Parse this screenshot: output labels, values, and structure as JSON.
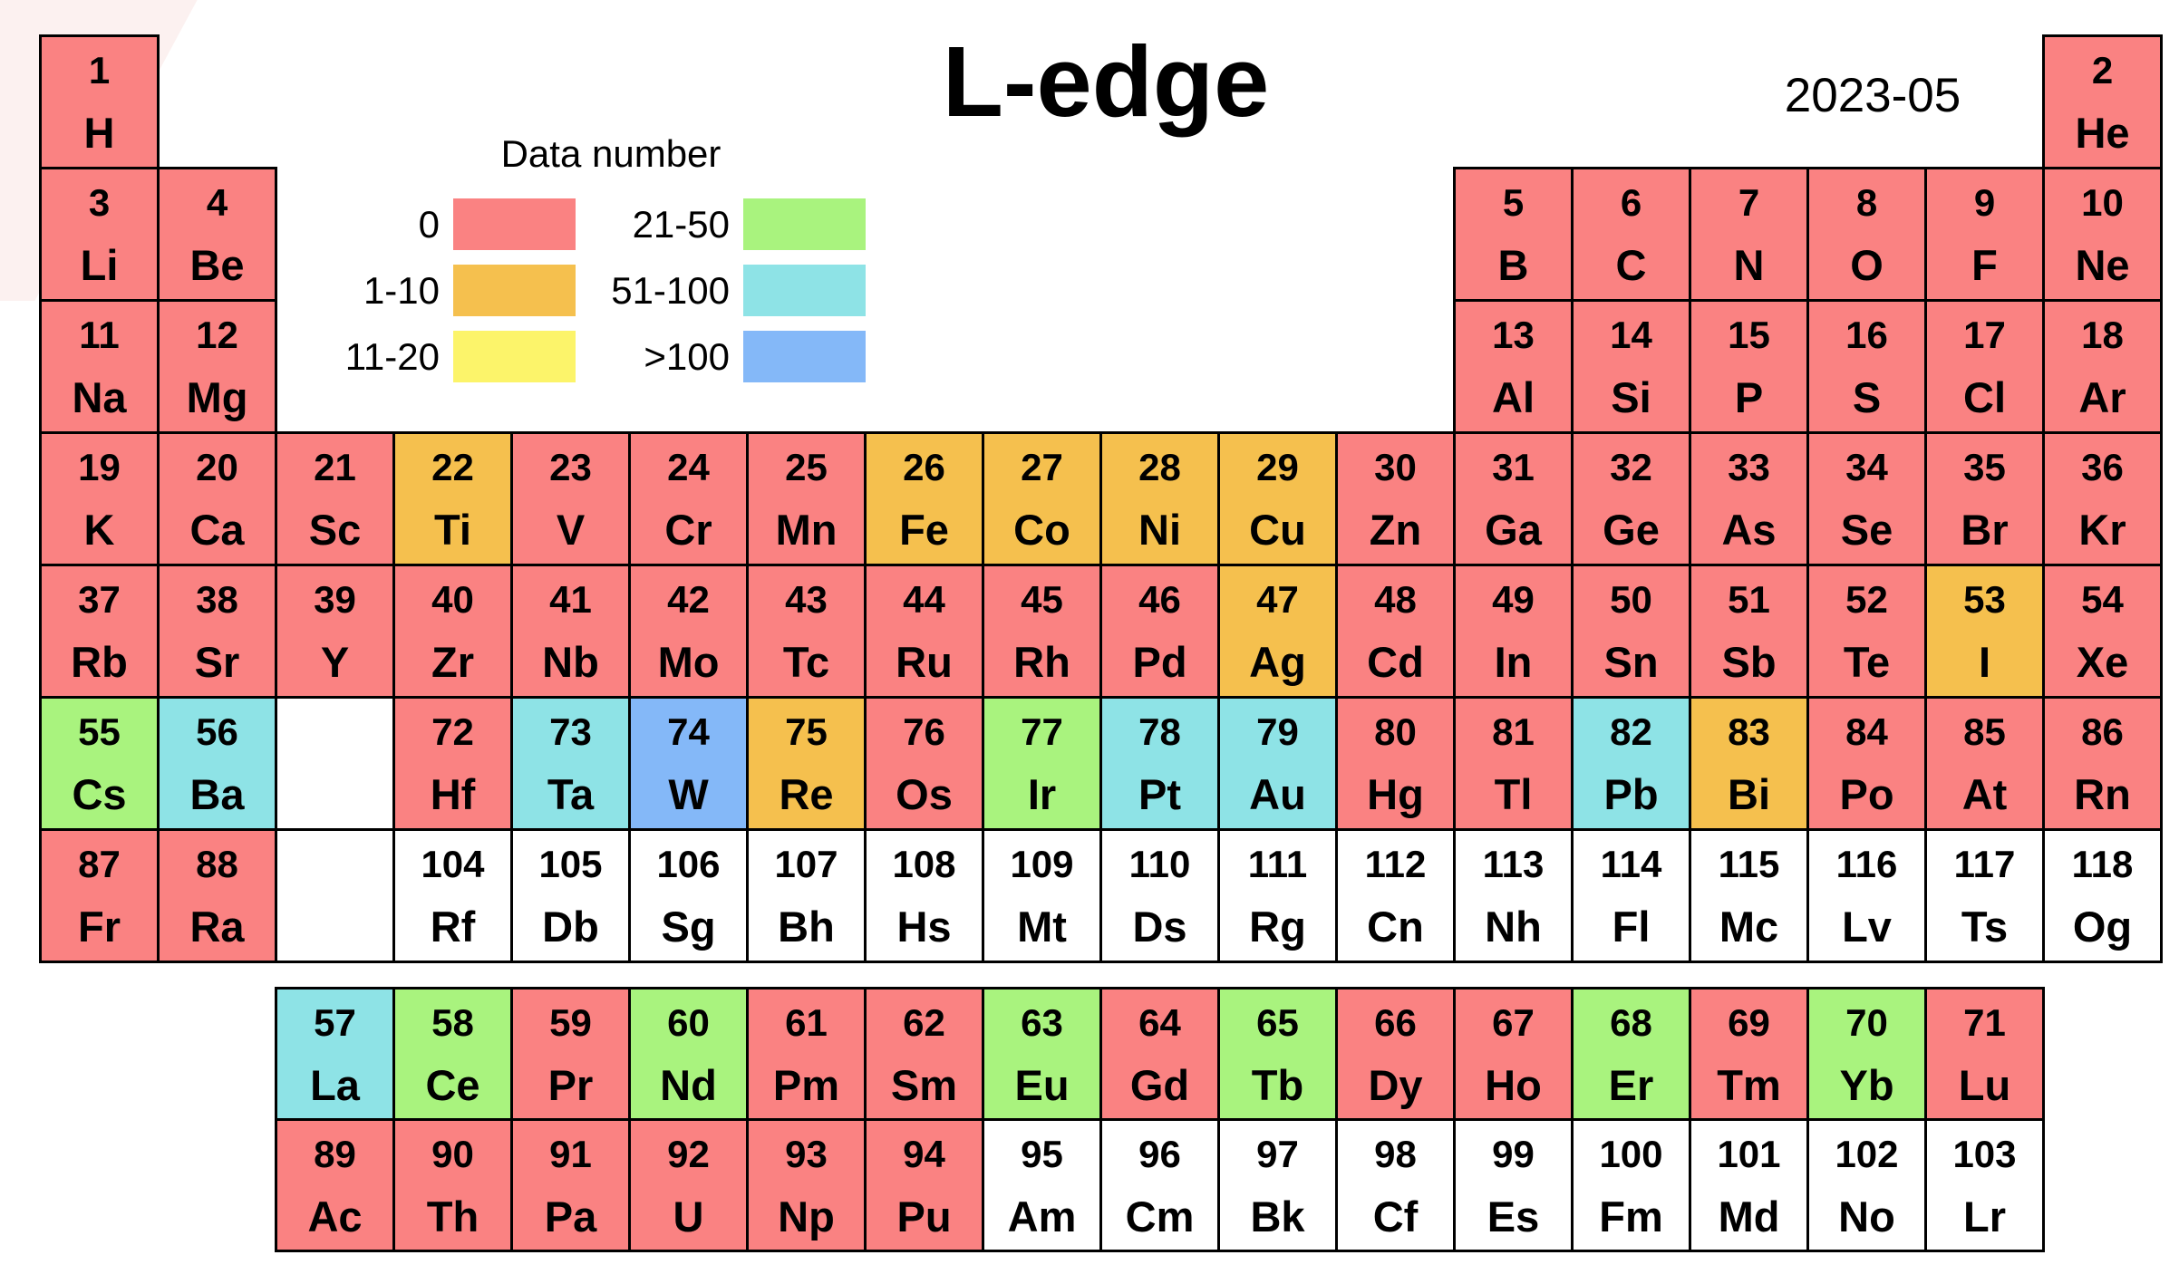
{
  "title": "L-edge",
  "date": "2023-05",
  "legend": {
    "title": "Data number",
    "items": [
      {
        "label": "0",
        "bin": "0",
        "row": 0,
        "col": 0
      },
      {
        "label": "1-10",
        "bin": "1-10",
        "row": 1,
        "col": 0
      },
      {
        "label": "11-20",
        "bin": "11-20",
        "row": 2,
        "col": 0
      },
      {
        "label": "21-50",
        "bin": "21-50",
        "row": 0,
        "col": 1
      },
      {
        "label": "51-100",
        "bin": "51-100",
        "row": 1,
        "col": 1
      },
      {
        "label": ">100",
        "bin": ">100",
        "row": 2,
        "col": 1
      }
    ]
  },
  "colors": {
    "0": "#fa8282",
    "1-10": "#f5c04e",
    "11-20": "#fcf46a",
    "21-50": "#a9f37e",
    "51-100": "#8ee3e6",
    ">100": "#84b8f8",
    "none": "#ffffff"
  },
  "placeholders": [
    {
      "row": 6,
      "col": 3
    },
    {
      "row": 7,
      "col": 3
    }
  ],
  "chart_data": {
    "type": "heatmap",
    "title": "L-edge",
    "subtitle": "2023-05",
    "legend_title": "Data number",
    "bins": [
      "0",
      "1-10",
      "11-20",
      "21-50",
      "51-100",
      ">100"
    ],
    "elements": [
      {
        "z": 1,
        "symbol": "H",
        "row": 1,
        "col": 1,
        "bin": "0"
      },
      {
        "z": 2,
        "symbol": "He",
        "row": 1,
        "col": 18,
        "bin": "0"
      },
      {
        "z": 3,
        "symbol": "Li",
        "row": 2,
        "col": 1,
        "bin": "0"
      },
      {
        "z": 4,
        "symbol": "Be",
        "row": 2,
        "col": 2,
        "bin": "0"
      },
      {
        "z": 5,
        "symbol": "B",
        "row": 2,
        "col": 13,
        "bin": "0"
      },
      {
        "z": 6,
        "symbol": "C",
        "row": 2,
        "col": 14,
        "bin": "0"
      },
      {
        "z": 7,
        "symbol": "N",
        "row": 2,
        "col": 15,
        "bin": "0"
      },
      {
        "z": 8,
        "symbol": "O",
        "row": 2,
        "col": 16,
        "bin": "0"
      },
      {
        "z": 9,
        "symbol": "F",
        "row": 2,
        "col": 17,
        "bin": "0"
      },
      {
        "z": 10,
        "symbol": "Ne",
        "row": 2,
        "col": 18,
        "bin": "0"
      },
      {
        "z": 11,
        "symbol": "Na",
        "row": 3,
        "col": 1,
        "bin": "0"
      },
      {
        "z": 12,
        "symbol": "Mg",
        "row": 3,
        "col": 2,
        "bin": "0"
      },
      {
        "z": 13,
        "symbol": "Al",
        "row": 3,
        "col": 13,
        "bin": "0"
      },
      {
        "z": 14,
        "symbol": "Si",
        "row": 3,
        "col": 14,
        "bin": "0"
      },
      {
        "z": 15,
        "symbol": "P",
        "row": 3,
        "col": 15,
        "bin": "0"
      },
      {
        "z": 16,
        "symbol": "S",
        "row": 3,
        "col": 16,
        "bin": "0"
      },
      {
        "z": 17,
        "symbol": "Cl",
        "row": 3,
        "col": 17,
        "bin": "0"
      },
      {
        "z": 18,
        "symbol": "Ar",
        "row": 3,
        "col": 18,
        "bin": "0"
      },
      {
        "z": 19,
        "symbol": "K",
        "row": 4,
        "col": 1,
        "bin": "0"
      },
      {
        "z": 20,
        "symbol": "Ca",
        "row": 4,
        "col": 2,
        "bin": "0"
      },
      {
        "z": 21,
        "symbol": "Sc",
        "row": 4,
        "col": 3,
        "bin": "0"
      },
      {
        "z": 22,
        "symbol": "Ti",
        "row": 4,
        "col": 4,
        "bin": "1-10"
      },
      {
        "z": 23,
        "symbol": "V",
        "row": 4,
        "col": 5,
        "bin": "0"
      },
      {
        "z": 24,
        "symbol": "Cr",
        "row": 4,
        "col": 6,
        "bin": "0"
      },
      {
        "z": 25,
        "symbol": "Mn",
        "row": 4,
        "col": 7,
        "bin": "0"
      },
      {
        "z": 26,
        "symbol": "Fe",
        "row": 4,
        "col": 8,
        "bin": "1-10"
      },
      {
        "z": 27,
        "symbol": "Co",
        "row": 4,
        "col": 9,
        "bin": "1-10"
      },
      {
        "z": 28,
        "symbol": "Ni",
        "row": 4,
        "col": 10,
        "bin": "1-10"
      },
      {
        "z": 29,
        "symbol": "Cu",
        "row": 4,
        "col": 11,
        "bin": "1-10"
      },
      {
        "z": 30,
        "symbol": "Zn",
        "row": 4,
        "col": 12,
        "bin": "0"
      },
      {
        "z": 31,
        "symbol": "Ga",
        "row": 4,
        "col": 13,
        "bin": "0"
      },
      {
        "z": 32,
        "symbol": "Ge",
        "row": 4,
        "col": 14,
        "bin": "0"
      },
      {
        "z": 33,
        "symbol": "As",
        "row": 4,
        "col": 15,
        "bin": "0"
      },
      {
        "z": 34,
        "symbol": "Se",
        "row": 4,
        "col": 16,
        "bin": "0"
      },
      {
        "z": 35,
        "symbol": "Br",
        "row": 4,
        "col": 17,
        "bin": "0"
      },
      {
        "z": 36,
        "symbol": "Kr",
        "row": 4,
        "col": 18,
        "bin": "0"
      },
      {
        "z": 37,
        "symbol": "Rb",
        "row": 5,
        "col": 1,
        "bin": "0"
      },
      {
        "z": 38,
        "symbol": "Sr",
        "row": 5,
        "col": 2,
        "bin": "0"
      },
      {
        "z": 39,
        "symbol": "Y",
        "row": 5,
        "col": 3,
        "bin": "0"
      },
      {
        "z": 40,
        "symbol": "Zr",
        "row": 5,
        "col": 4,
        "bin": "0"
      },
      {
        "z": 41,
        "symbol": "Nb",
        "row": 5,
        "col": 5,
        "bin": "0"
      },
      {
        "z": 42,
        "symbol": "Mo",
        "row": 5,
        "col": 6,
        "bin": "0"
      },
      {
        "z": 43,
        "symbol": "Tc",
        "row": 5,
        "col": 7,
        "bin": "0"
      },
      {
        "z": 44,
        "symbol": "Ru",
        "row": 5,
        "col": 8,
        "bin": "0"
      },
      {
        "z": 45,
        "symbol": "Rh",
        "row": 5,
        "col": 9,
        "bin": "0"
      },
      {
        "z": 46,
        "symbol": "Pd",
        "row": 5,
        "col": 10,
        "bin": "0"
      },
      {
        "z": 47,
        "symbol": "Ag",
        "row": 5,
        "col": 11,
        "bin": "1-10"
      },
      {
        "z": 48,
        "symbol": "Cd",
        "row": 5,
        "col": 12,
        "bin": "0"
      },
      {
        "z": 49,
        "symbol": "In",
        "row": 5,
        "col": 13,
        "bin": "0"
      },
      {
        "z": 50,
        "symbol": "Sn",
        "row": 5,
        "col": 14,
        "bin": "0"
      },
      {
        "z": 51,
        "symbol": "Sb",
        "row": 5,
        "col": 15,
        "bin": "0"
      },
      {
        "z": 52,
        "symbol": "Te",
        "row": 5,
        "col": 16,
        "bin": "0"
      },
      {
        "z": 53,
        "symbol": "I",
        "row": 5,
        "col": 17,
        "bin": "1-10"
      },
      {
        "z": 54,
        "symbol": "Xe",
        "row": 5,
        "col": 18,
        "bin": "0"
      },
      {
        "z": 55,
        "symbol": "Cs",
        "row": 6,
        "col": 1,
        "bin": "21-50"
      },
      {
        "z": 56,
        "symbol": "Ba",
        "row": 6,
        "col": 2,
        "bin": "51-100"
      },
      {
        "z": 72,
        "symbol": "Hf",
        "row": 6,
        "col": 4,
        "bin": "0"
      },
      {
        "z": 73,
        "symbol": "Ta",
        "row": 6,
        "col": 5,
        "bin": "51-100"
      },
      {
        "z": 74,
        "symbol": "W",
        "row": 6,
        "col": 6,
        "bin": ">100"
      },
      {
        "z": 75,
        "symbol": "Re",
        "row": 6,
        "col": 7,
        "bin": "1-10"
      },
      {
        "z": 76,
        "symbol": "Os",
        "row": 6,
        "col": 8,
        "bin": "0"
      },
      {
        "z": 77,
        "symbol": "Ir",
        "row": 6,
        "col": 9,
        "bin": "21-50"
      },
      {
        "z": 78,
        "symbol": "Pt",
        "row": 6,
        "col": 10,
        "bin": "51-100"
      },
      {
        "z": 79,
        "symbol": "Au",
        "row": 6,
        "col": 11,
        "bin": "51-100"
      },
      {
        "z": 80,
        "symbol": "Hg",
        "row": 6,
        "col": 12,
        "bin": "0"
      },
      {
        "z": 81,
        "symbol": "Tl",
        "row": 6,
        "col": 13,
        "bin": "0"
      },
      {
        "z": 82,
        "symbol": "Pb",
        "row": 6,
        "col": 14,
        "bin": "51-100"
      },
      {
        "z": 83,
        "symbol": "Bi",
        "row": 6,
        "col": 15,
        "bin": "1-10"
      },
      {
        "z": 84,
        "symbol": "Po",
        "row": 6,
        "col": 16,
        "bin": "0"
      },
      {
        "z": 85,
        "symbol": "At",
        "row": 6,
        "col": 17,
        "bin": "0"
      },
      {
        "z": 86,
        "symbol": "Rn",
        "row": 6,
        "col": 18,
        "bin": "0"
      },
      {
        "z": 87,
        "symbol": "Fr",
        "row": 7,
        "col": 1,
        "bin": "0"
      },
      {
        "z": 88,
        "symbol": "Ra",
        "row": 7,
        "col": 2,
        "bin": "0"
      },
      {
        "z": 104,
        "symbol": "Rf",
        "row": 7,
        "col": 4,
        "bin": "none"
      },
      {
        "z": 105,
        "symbol": "Db",
        "row": 7,
        "col": 5,
        "bin": "none"
      },
      {
        "z": 106,
        "symbol": "Sg",
        "row": 7,
        "col": 6,
        "bin": "none"
      },
      {
        "z": 107,
        "symbol": "Bh",
        "row": 7,
        "col": 7,
        "bin": "none"
      },
      {
        "z": 108,
        "symbol": "Hs",
        "row": 7,
        "col": 8,
        "bin": "none"
      },
      {
        "z": 109,
        "symbol": "Mt",
        "row": 7,
        "col": 9,
        "bin": "none"
      },
      {
        "z": 110,
        "symbol": "Ds",
        "row": 7,
        "col": 10,
        "bin": "none"
      },
      {
        "z": 111,
        "symbol": "Rg",
        "row": 7,
        "col": 11,
        "bin": "none"
      },
      {
        "z": 112,
        "symbol": "Cn",
        "row": 7,
        "col": 12,
        "bin": "none"
      },
      {
        "z": 113,
        "symbol": "Nh",
        "row": 7,
        "col": 13,
        "bin": "none"
      },
      {
        "z": 114,
        "symbol": "Fl",
        "row": 7,
        "col": 14,
        "bin": "none"
      },
      {
        "z": 115,
        "symbol": "Mc",
        "row": 7,
        "col": 15,
        "bin": "none"
      },
      {
        "z": 116,
        "symbol": "Lv",
        "row": 7,
        "col": 16,
        "bin": "none"
      },
      {
        "z": 117,
        "symbol": "Ts",
        "row": 7,
        "col": 17,
        "bin": "none"
      },
      {
        "z": 118,
        "symbol": "Og",
        "row": 7,
        "col": 18,
        "bin": "none"
      },
      {
        "z": 57,
        "symbol": "La",
        "row": 8,
        "col": 3,
        "bin": "51-100"
      },
      {
        "z": 58,
        "symbol": "Ce",
        "row": 8,
        "col": 4,
        "bin": "21-50"
      },
      {
        "z": 59,
        "symbol": "Pr",
        "row": 8,
        "col": 5,
        "bin": "0"
      },
      {
        "z": 60,
        "symbol": "Nd",
        "row": 8,
        "col": 6,
        "bin": "21-50"
      },
      {
        "z": 61,
        "symbol": "Pm",
        "row": 8,
        "col": 7,
        "bin": "0"
      },
      {
        "z": 62,
        "symbol": "Sm",
        "row": 8,
        "col": 8,
        "bin": "0"
      },
      {
        "z": 63,
        "symbol": "Eu",
        "row": 8,
        "col": 9,
        "bin": "21-50"
      },
      {
        "z": 64,
        "symbol": "Gd",
        "row": 8,
        "col": 10,
        "bin": "0"
      },
      {
        "z": 65,
        "symbol": "Tb",
        "row": 8,
        "col": 11,
        "bin": "21-50"
      },
      {
        "z": 66,
        "symbol": "Dy",
        "row": 8,
        "col": 12,
        "bin": "0"
      },
      {
        "z": 67,
        "symbol": "Ho",
        "row": 8,
        "col": 13,
        "bin": "0"
      },
      {
        "z": 68,
        "symbol": "Er",
        "row": 8,
        "col": 14,
        "bin": "21-50"
      },
      {
        "z": 69,
        "symbol": "Tm",
        "row": 8,
        "col": 15,
        "bin": "0"
      },
      {
        "z": 70,
        "symbol": "Yb",
        "row": 8,
        "col": 16,
        "bin": "21-50"
      },
      {
        "z": 71,
        "symbol": "Lu",
        "row": 8,
        "col": 17,
        "bin": "0"
      },
      {
        "z": 89,
        "symbol": "Ac",
        "row": 9,
        "col": 3,
        "bin": "0"
      },
      {
        "z": 90,
        "symbol": "Th",
        "row": 9,
        "col": 4,
        "bin": "0"
      },
      {
        "z": 91,
        "symbol": "Pa",
        "row": 9,
        "col": 5,
        "bin": "0"
      },
      {
        "z": 92,
        "symbol": "U",
        "row": 9,
        "col": 6,
        "bin": "0"
      },
      {
        "z": 93,
        "symbol": "Np",
        "row": 9,
        "col": 7,
        "bin": "0"
      },
      {
        "z": 94,
        "symbol": "Pu",
        "row": 9,
        "col": 8,
        "bin": "0"
      },
      {
        "z": 95,
        "symbol": "Am",
        "row": 9,
        "col": 9,
        "bin": "none"
      },
      {
        "z": 96,
        "symbol": "Cm",
        "row": 9,
        "col": 10,
        "bin": "none"
      },
      {
        "z": 97,
        "symbol": "Bk",
        "row": 9,
        "col": 11,
        "bin": "none"
      },
      {
        "z": 98,
        "symbol": "Cf",
        "row": 9,
        "col": 12,
        "bin": "none"
      },
      {
        "z": 99,
        "symbol": "Es",
        "row": 9,
        "col": 13,
        "bin": "none"
      },
      {
        "z": 100,
        "symbol": "Fm",
        "row": 9,
        "col": 14,
        "bin": "none"
      },
      {
        "z": 101,
        "symbol": "Md",
        "row": 9,
        "col": 15,
        "bin": "none"
      },
      {
        "z": 102,
        "symbol": "No",
        "row": 9,
        "col": 16,
        "bin": "none"
      },
      {
        "z": 103,
        "symbol": "Lr",
        "row": 9,
        "col": 17,
        "bin": "none"
      }
    ]
  }
}
